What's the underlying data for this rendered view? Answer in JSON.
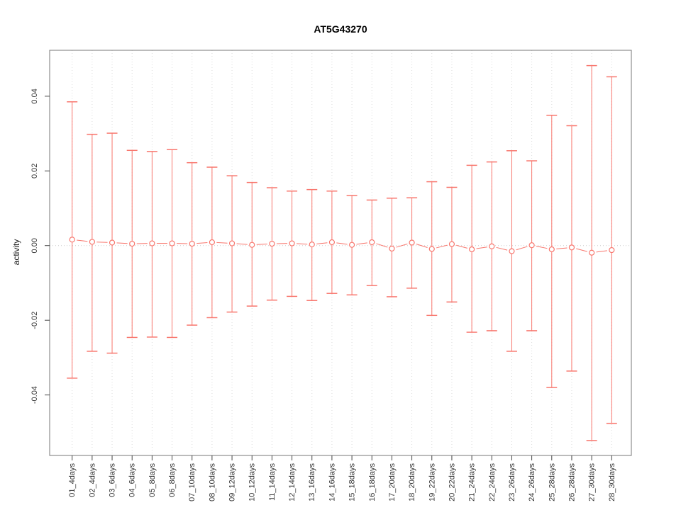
{
  "chart_data": {
    "type": "scatter",
    "error_bars": true,
    "title": "AT5G43270",
    "xlabel": "",
    "ylabel": "activity",
    "legend": "none",
    "grid": "dotted vertical gridline per category; dotted horizontal line at y=0",
    "ylim": [
      -0.0562,
      0.0523
    ],
    "yticks": [
      {
        "value": 0.04,
        "label": "0.04"
      },
      {
        "value": 0.02,
        "label": "0.02"
      },
      {
        "value": 0.0,
        "label": "0.00"
      },
      {
        "value": -0.02,
        "label": "-0.02"
      },
      {
        "value": -0.04,
        "label": "-0.04"
      }
    ],
    "categories": [
      "01_4days",
      "02_4days",
      "03_6days",
      "04_6days",
      "05_8days",
      "06_8days",
      "07_10days",
      "08_10days",
      "09_12days",
      "10_12days",
      "11_14days",
      "12_14days",
      "13_16days",
      "14_16days",
      "15_18days",
      "16_18days",
      "17_20days",
      "18_20days",
      "19_22days",
      "20_22days",
      "21_24days",
      "22_24days",
      "23_26days",
      "24_26days",
      "25_28days",
      "26_28days",
      "27_30days",
      "28_30days"
    ],
    "series": [
      {
        "name": "activity",
        "center": [
          0.0016,
          0.001,
          0.0008,
          0.0005,
          0.0006,
          0.0006,
          0.0005,
          0.0009,
          0.0006,
          0.0002,
          0.0005,
          0.0006,
          0.0003,
          0.0009,
          0.0002,
          0.0009,
          -0.0008,
          0.0008,
          -0.0009,
          0.0004,
          -0.001,
          -0.0002,
          -0.0015,
          0.0001,
          -0.001,
          -0.0005,
          -0.0019,
          -0.0012
        ],
        "upper": [
          0.0385,
          0.0298,
          0.0301,
          0.0255,
          0.0252,
          0.0257,
          0.0222,
          0.021,
          0.0187,
          0.0169,
          0.0155,
          0.0146,
          0.015,
          0.0146,
          0.0134,
          0.0122,
          0.0127,
          0.0128,
          0.0171,
          0.0156,
          0.0215,
          0.0224,
          0.0254,
          0.0227,
          0.0349,
          0.0321,
          0.0482,
          0.0452
        ],
        "lower": [
          -0.0355,
          -0.0283,
          -0.0288,
          -0.0246,
          -0.0245,
          -0.0246,
          -0.0213,
          -0.0193,
          -0.0178,
          -0.0162,
          -0.0146,
          -0.0136,
          -0.0147,
          -0.0128,
          -0.0132,
          -0.0107,
          -0.0137,
          -0.0114,
          -0.0187,
          -0.0151,
          -0.0232,
          -0.0228,
          -0.0283,
          -0.0228,
          -0.038,
          -0.0336,
          -0.0522,
          -0.0476
        ]
      }
    ],
    "colors": {
      "series": "#F8766D",
      "gridline": "#DBDBDB",
      "zero_line": "#CCCCCC",
      "box": "#777777",
      "tick": "#444444",
      "tick_label": "#333333",
      "point_fill": "#FFFFFF"
    }
  }
}
